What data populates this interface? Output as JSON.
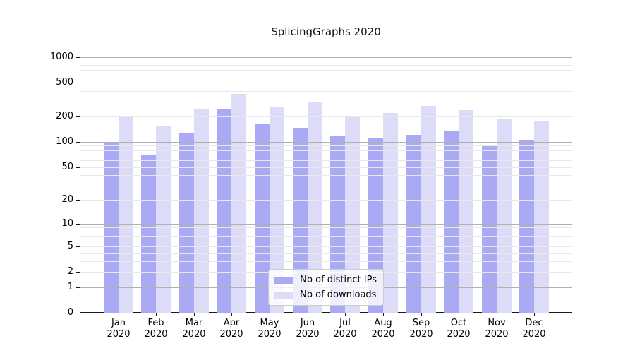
{
  "figure": {
    "title": "SplicingGraphs 2020"
  },
  "colors": {
    "major_grid": "#b0b0b0",
    "minor_grid": "#e8e8e8",
    "spine": "#1a1a1a",
    "series_dark": "#a9a9f4",
    "series_light": "#dcdcf9"
  },
  "chart_data": {
    "type": "bar",
    "title": "SplicingGraphs 2020",
    "categories": [
      "Jan",
      "Feb",
      "Mar",
      "Apr",
      "May",
      "Jun",
      "Jul",
      "Aug",
      "Sep",
      "Oct",
      "Nov",
      "Dec"
    ],
    "category_year": "2020",
    "series": [
      {
        "name": "Nb of distinct IPs",
        "slug": "distinct-ips",
        "color": "#a9a9f4",
        "values": [
          100,
          70,
          127,
          247,
          166,
          146,
          117,
          112,
          121,
          135,
          90,
          103
        ]
      },
      {
        "name": "Nb of downloads",
        "slug": "downloads",
        "color": "#dcdcf9",
        "values": [
          197,
          152,
          243,
          371,
          256,
          298,
          196,
          221,
          268,
          236,
          188,
          178
        ]
      }
    ],
    "xlabel": "",
    "ylabel": "",
    "yscale": "log1p",
    "ylim": [
      0,
      1400
    ],
    "y_ticks": [
      {
        "value": 1000,
        "label": "1000"
      },
      {
        "value": 500,
        "label": "500"
      },
      {
        "value": 200,
        "label": "200"
      },
      {
        "value": 100,
        "label": "100"
      },
      {
        "value": 50,
        "label": "50"
      },
      {
        "value": 20,
        "label": "20"
      },
      {
        "value": 10,
        "label": "10"
      },
      {
        "value": 5,
        "label": "5"
      },
      {
        "value": 2,
        "label": "2"
      },
      {
        "value": 1,
        "label": "1"
      },
      {
        "value": 0,
        "label": "0"
      }
    ],
    "grid": {
      "major_values": [
        1,
        10,
        100,
        1000
      ],
      "minor_values": [
        2,
        3,
        4,
        5,
        6,
        7,
        8,
        9,
        20,
        30,
        40,
        50,
        60,
        70,
        80,
        90,
        200,
        300,
        400,
        500,
        600,
        700,
        800,
        900
      ]
    },
    "legend_position": "lower center"
  }
}
